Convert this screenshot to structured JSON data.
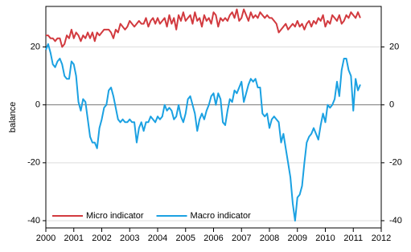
{
  "chart_data": {
    "type": "line",
    "y_label": "balance",
    "x": [
      2000,
      2000.083,
      2000.167,
      2000.25,
      2000.333,
      2000.417,
      2000.5,
      2000.583,
      2000.667,
      2000.75,
      2000.833,
      2000.917,
      2001,
      2001.083,
      2001.167,
      2001.25,
      2001.333,
      2001.417,
      2001.5,
      2001.583,
      2001.667,
      2001.75,
      2001.833,
      2001.917,
      2002,
      2002.083,
      2002.167,
      2002.25,
      2002.333,
      2002.417,
      2002.5,
      2002.583,
      2002.667,
      2002.75,
      2002.833,
      2002.917,
      2003,
      2003.083,
      2003.167,
      2003.25,
      2003.333,
      2003.417,
      2003.5,
      2003.583,
      2003.667,
      2003.75,
      2003.833,
      2003.917,
      2004,
      2004.083,
      2004.167,
      2004.25,
      2004.333,
      2004.417,
      2004.5,
      2004.583,
      2004.667,
      2004.75,
      2004.833,
      2004.917,
      2005,
      2005.083,
      2005.167,
      2005.25,
      2005.333,
      2005.417,
      2005.5,
      2005.583,
      2005.667,
      2005.75,
      2005.833,
      2005.917,
      2006,
      2006.083,
      2006.167,
      2006.25,
      2006.333,
      2006.417,
      2006.5,
      2006.583,
      2006.667,
      2006.75,
      2006.833,
      2006.917,
      2007,
      2007.083,
      2007.167,
      2007.25,
      2007.333,
      2007.417,
      2007.5,
      2007.583,
      2007.667,
      2007.75,
      2007.833,
      2007.917,
      2008,
      2008.083,
      2008.167,
      2008.25,
      2008.333,
      2008.417,
      2008.5,
      2008.583,
      2008.667,
      2008.75,
      2008.833,
      2008.917,
      2009,
      2009.083,
      2009.167,
      2009.25,
      2009.333,
      2009.417,
      2009.5,
      2009.583,
      2009.667,
      2009.75,
      2009.833,
      2009.917,
      2010,
      2010.083,
      2010.167,
      2010.25,
      2010.333,
      2010.417,
      2010.5,
      2010.583,
      2010.667,
      2010.75,
      2010.833,
      2010.917,
      2011,
      2011.083,
      2011.167,
      2011.25
    ],
    "series": [
      {
        "name": "Micro indicator",
        "color": "#d23a3f",
        "values": [
          24,
          24,
          23,
          23,
          22,
          23,
          23,
          20,
          21,
          24,
          23,
          26,
          23,
          25,
          24,
          22,
          24,
          23,
          25,
          23,
          25,
          22,
          25,
          24,
          25,
          26,
          26,
          26,
          25,
          23,
          26,
          25,
          28,
          27,
          26,
          27,
          29,
          28,
          27,
          28,
          29,
          28,
          28,
          30,
          27,
          29,
          30,
          28,
          30,
          28,
          29,
          30,
          27,
          31,
          28,
          30,
          26,
          31,
          29,
          32,
          29,
          30,
          31,
          28,
          32,
          29,
          30,
          27,
          31,
          29,
          30,
          28,
          32,
          31,
          27,
          30,
          29,
          30,
          29,
          31,
          32,
          30,
          33,
          29,
          30,
          33,
          31,
          29,
          32,
          30,
          31,
          30,
          32,
          31,
          30,
          31,
          30,
          30,
          29,
          28,
          25,
          26,
          27,
          28,
          26,
          27,
          28,
          27,
          29,
          27,
          28,
          26,
          28,
          29,
          27,
          29,
          28,
          30,
          29,
          31,
          27,
          29,
          28,
          31,
          30,
          29,
          31,
          28,
          29,
          31,
          30,
          32,
          31,
          30,
          32,
          30
        ]
      },
      {
        "name": "Macro indicator",
        "color": "#1ba1e2",
        "values": [
          19,
          21,
          18,
          14,
          13,
          15,
          16,
          14,
          10,
          9,
          9,
          15,
          14,
          10,
          1,
          -2,
          2,
          1,
          -5,
          -11,
          -13,
          -13,
          -15,
          -8,
          -5,
          -1,
          0,
          5,
          6,
          3,
          -1,
          -5,
          -6,
          -5,
          -6,
          -6,
          -5,
          -6,
          -6,
          -13,
          -8,
          -6,
          -9,
          -6,
          -6,
          -4,
          -5,
          -6,
          -4,
          -5,
          -4,
          0,
          -2,
          -1,
          -2,
          -5,
          -4,
          0,
          -4,
          -6,
          -3,
          2,
          3,
          0,
          -3,
          -9,
          -5,
          -3,
          -5,
          -2,
          0,
          3,
          4,
          0,
          4,
          2,
          -6,
          -7,
          -2,
          2,
          1,
          5,
          4,
          6,
          8,
          1,
          4,
          7,
          9,
          8,
          9,
          6,
          6,
          -3,
          -4,
          -3,
          -8,
          -5,
          -4,
          -5,
          -6,
          -13,
          -10,
          -15,
          -20,
          -25,
          -34,
          -40,
          -32,
          -31,
          -28,
          -20,
          -13,
          -11,
          -10,
          -8,
          -10,
          -12,
          -7,
          -3,
          -6,
          0,
          -1,
          0,
          2,
          8,
          3,
          12,
          16,
          16,
          12,
          10,
          -2,
          9,
          5,
          7
        ]
      }
    ],
    "xlim": [
      2000,
      2012
    ],
    "xticks": [
      2000,
      2001,
      2002,
      2003,
      2004,
      2005,
      2006,
      2007,
      2008,
      2009,
      2010,
      2011,
      2012
    ],
    "ylim": [
      -42.5,
      34
    ],
    "yticks": [
      -40,
      -20,
      0,
      20
    ],
    "y2lim": [
      -42.5,
      34
    ],
    "y2ticks": [
      -40,
      -20,
      0,
      20
    ],
    "grid": true,
    "legend": "lower left"
  }
}
